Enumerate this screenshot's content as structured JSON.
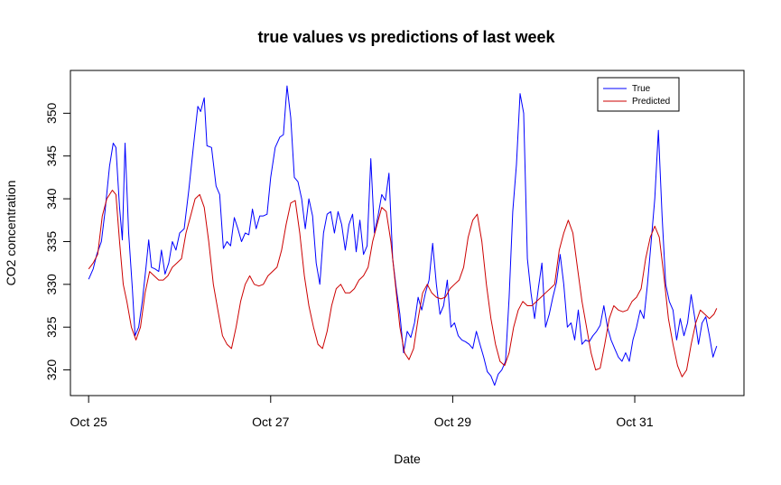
{
  "chart_data": {
    "type": "line",
    "title": "true values vs predictions of last week",
    "xlabel": "Date",
    "ylabel": "CO2 concentration",
    "x_ticks": [
      {
        "label": "Oct 25",
        "value": 0
      },
      {
        "label": "Oct 27",
        "value": 2
      },
      {
        "label": "Oct 29",
        "value": 4
      },
      {
        "label": "Oct 31",
        "value": 6
      }
    ],
    "y_ticks": [
      320,
      325,
      330,
      335,
      340,
      345,
      350
    ],
    "xlim": [
      -0.2,
      7.2
    ],
    "ylim": [
      317,
      355
    ],
    "grid": false,
    "legend_position": "top-right",
    "series": [
      {
        "name": "True",
        "color": "#0000ff",
        "points": [
          [
            0.0,
            330.6
          ],
          [
            0.05,
            331.8
          ],
          [
            0.09,
            333.5
          ],
          [
            0.14,
            335.0
          ],
          [
            0.18,
            338.5
          ],
          [
            0.23,
            343.8
          ],
          [
            0.27,
            346.5
          ],
          [
            0.3,
            346.0
          ],
          [
            0.34,
            339.0
          ],
          [
            0.37,
            335.2
          ],
          [
            0.4,
            346.5
          ],
          [
            0.44,
            336.0
          ],
          [
            0.48,
            329.5
          ],
          [
            0.51,
            324.0
          ],
          [
            0.55,
            325.0
          ],
          [
            0.59,
            328.0
          ],
          [
            0.63,
            332.0
          ],
          [
            0.66,
            335.2
          ],
          [
            0.69,
            332.0
          ],
          [
            0.73,
            331.8
          ],
          [
            0.77,
            331.5
          ],
          [
            0.8,
            334.0
          ],
          [
            0.84,
            331.2
          ],
          [
            0.88,
            332.5
          ],
          [
            0.92,
            335.0
          ],
          [
            0.96,
            334.0
          ],
          [
            1.0,
            336.0
          ],
          [
            1.05,
            336.5
          ],
          [
            1.1,
            341.0
          ],
          [
            1.15,
            346.0
          ],
          [
            1.2,
            350.8
          ],
          [
            1.23,
            350.2
          ],
          [
            1.27,
            351.8
          ],
          [
            1.3,
            346.2
          ],
          [
            1.35,
            346.0
          ],
          [
            1.4,
            341.5
          ],
          [
            1.44,
            340.5
          ],
          [
            1.48,
            334.2
          ],
          [
            1.52,
            335.0
          ],
          [
            1.56,
            334.5
          ],
          [
            1.6,
            337.8
          ],
          [
            1.64,
            336.5
          ],
          [
            1.68,
            335.0
          ],
          [
            1.72,
            336.0
          ],
          [
            1.76,
            335.8
          ],
          [
            1.8,
            338.8
          ],
          [
            1.84,
            336.5
          ],
          [
            1.88,
            338.0
          ],
          [
            1.92,
            338.0
          ],
          [
            1.96,
            338.2
          ],
          [
            2.0,
            342.5
          ],
          [
            2.05,
            346.0
          ],
          [
            2.1,
            347.2
          ],
          [
            2.14,
            347.5
          ],
          [
            2.18,
            353.2
          ],
          [
            2.22,
            349.5
          ],
          [
            2.26,
            342.5
          ],
          [
            2.3,
            342.0
          ],
          [
            2.34,
            340.0
          ],
          [
            2.38,
            336.5
          ],
          [
            2.42,
            340.0
          ],
          [
            2.46,
            338.0
          ],
          [
            2.5,
            332.5
          ],
          [
            2.54,
            330.0
          ],
          [
            2.58,
            336.0
          ],
          [
            2.62,
            338.2
          ],
          [
            2.66,
            338.5
          ],
          [
            2.7,
            336.0
          ],
          [
            2.74,
            338.5
          ],
          [
            2.78,
            337.0
          ],
          [
            2.82,
            334.0
          ],
          [
            2.86,
            337.0
          ],
          [
            2.9,
            338.2
          ],
          [
            2.94,
            333.8
          ],
          [
            2.98,
            337.5
          ],
          [
            3.02,
            333.5
          ],
          [
            3.06,
            334.5
          ],
          [
            3.1,
            344.7
          ],
          [
            3.14,
            336.0
          ],
          [
            3.18,
            338.0
          ],
          [
            3.22,
            340.5
          ],
          [
            3.26,
            339.8
          ],
          [
            3.3,
            343.0
          ],
          [
            3.34,
            333.0
          ],
          [
            3.38,
            329.5
          ],
          [
            3.42,
            326.5
          ],
          [
            3.46,
            322.0
          ],
          [
            3.5,
            324.5
          ],
          [
            3.54,
            323.8
          ],
          [
            3.58,
            325.5
          ],
          [
            3.62,
            328.5
          ],
          [
            3.66,
            327.0
          ],
          [
            3.7,
            329.0
          ],
          [
            3.74,
            330.5
          ],
          [
            3.78,
            334.8
          ],
          [
            3.82,
            330.0
          ],
          [
            3.86,
            326.5
          ],
          [
            3.9,
            327.5
          ],
          [
            3.94,
            330.5
          ],
          [
            3.98,
            325.0
          ],
          [
            4.02,
            325.5
          ],
          [
            4.06,
            324.0
          ],
          [
            4.1,
            323.5
          ],
          [
            4.14,
            323.3
          ],
          [
            4.18,
            323.0
          ],
          [
            4.22,
            322.5
          ],
          [
            4.26,
            324.5
          ],
          [
            4.3,
            323.0
          ],
          [
            4.34,
            321.5
          ],
          [
            4.38,
            319.8
          ],
          [
            4.42,
            319.3
          ],
          [
            4.46,
            318.2
          ],
          [
            4.5,
            319.5
          ],
          [
            4.54,
            320.0
          ],
          [
            4.58,
            321.0
          ],
          [
            4.62,
            328.5
          ],
          [
            4.66,
            338.5
          ],
          [
            4.7,
            344.0
          ],
          [
            4.74,
            352.3
          ],
          [
            4.78,
            350.0
          ],
          [
            4.82,
            333.0
          ],
          [
            4.86,
            329.0
          ],
          [
            4.9,
            326.0
          ],
          [
            4.94,
            329.5
          ],
          [
            4.98,
            332.5
          ],
          [
            5.02,
            325.0
          ],
          [
            5.06,
            326.5
          ],
          [
            5.1,
            328.5
          ],
          [
            5.14,
            330.2
          ],
          [
            5.18,
            333.5
          ],
          [
            5.22,
            330.0
          ],
          [
            5.26,
            325.0
          ],
          [
            5.3,
            325.5
          ],
          [
            5.34,
            323.5
          ],
          [
            5.38,
            327.0
          ],
          [
            5.42,
            323.0
          ],
          [
            5.46,
            323.5
          ],
          [
            5.5,
            323.3
          ],
          [
            5.54,
            324.0
          ],
          [
            5.58,
            324.5
          ],
          [
            5.62,
            325.2
          ],
          [
            5.66,
            327.5
          ],
          [
            5.7,
            325.0
          ],
          [
            5.74,
            323.5
          ],
          [
            5.78,
            322.5
          ],
          [
            5.82,
            321.5
          ],
          [
            5.86,
            321.0
          ],
          [
            5.9,
            322.0
          ],
          [
            5.94,
            321.0
          ],
          [
            5.98,
            323.5
          ],
          [
            6.02,
            325.0
          ],
          [
            6.06,
            327.0
          ],
          [
            6.1,
            326.0
          ],
          [
            6.14,
            330.0
          ],
          [
            6.18,
            335.0
          ],
          [
            6.22,
            340.0
          ],
          [
            6.26,
            348.0
          ],
          [
            6.3,
            338.0
          ],
          [
            6.34,
            330.0
          ],
          [
            6.38,
            328.0
          ],
          [
            6.42,
            327.0
          ],
          [
            6.46,
            323.5
          ],
          [
            6.5,
            326.0
          ],
          [
            6.54,
            324.0
          ],
          [
            6.58,
            325.5
          ],
          [
            6.62,
            328.8
          ],
          [
            6.66,
            326.0
          ],
          [
            6.7,
            323.0
          ],
          [
            6.74,
            325.5
          ],
          [
            6.78,
            326.2
          ],
          [
            6.82,
            324.0
          ],
          [
            6.86,
            321.5
          ],
          [
            6.9,
            322.8
          ]
        ]
      },
      {
        "name": "Predicted",
        "color": "#cc0000",
        "points": [
          [
            0.0,
            331.8
          ],
          [
            0.05,
            332.5
          ],
          [
            0.1,
            333.5
          ],
          [
            0.15,
            338.0
          ],
          [
            0.2,
            340.0
          ],
          [
            0.26,
            341.0
          ],
          [
            0.3,
            340.5
          ],
          [
            0.34,
            335.0
          ],
          [
            0.38,
            330.0
          ],
          [
            0.42,
            328.0
          ],
          [
            0.47,
            325.0
          ],
          [
            0.52,
            323.5
          ],
          [
            0.57,
            325.0
          ],
          [
            0.62,
            329.0
          ],
          [
            0.67,
            331.5
          ],
          [
            0.72,
            331.0
          ],
          [
            0.77,
            330.5
          ],
          [
            0.82,
            330.5
          ],
          [
            0.87,
            331.0
          ],
          [
            0.92,
            332.0
          ],
          [
            0.97,
            332.5
          ],
          [
            1.02,
            333.0
          ],
          [
            1.07,
            336.0
          ],
          [
            1.12,
            338.0
          ],
          [
            1.17,
            340.0
          ],
          [
            1.22,
            340.5
          ],
          [
            1.27,
            339.0
          ],
          [
            1.32,
            335.0
          ],
          [
            1.37,
            330.0
          ],
          [
            1.42,
            327.0
          ],
          [
            1.47,
            324.0
          ],
          [
            1.52,
            323.0
          ],
          [
            1.57,
            322.5
          ],
          [
            1.62,
            325.0
          ],
          [
            1.67,
            328.0
          ],
          [
            1.72,
            330.0
          ],
          [
            1.77,
            331.0
          ],
          [
            1.82,
            330.0
          ],
          [
            1.87,
            329.8
          ],
          [
            1.92,
            330.0
          ],
          [
            1.97,
            331.0
          ],
          [
            2.02,
            331.5
          ],
          [
            2.07,
            332.0
          ],
          [
            2.12,
            334.0
          ],
          [
            2.17,
            337.0
          ],
          [
            2.22,
            339.5
          ],
          [
            2.27,
            339.8
          ],
          [
            2.32,
            336.0
          ],
          [
            2.37,
            331.0
          ],
          [
            2.42,
            327.5
          ],
          [
            2.47,
            325.0
          ],
          [
            2.52,
            323.0
          ],
          [
            2.57,
            322.5
          ],
          [
            2.62,
            324.5
          ],
          [
            2.67,
            327.5
          ],
          [
            2.72,
            329.5
          ],
          [
            2.77,
            330.0
          ],
          [
            2.82,
            329.0
          ],
          [
            2.87,
            329.0
          ],
          [
            2.92,
            329.5
          ],
          [
            2.97,
            330.5
          ],
          [
            3.02,
            331.0
          ],
          [
            3.07,
            332.0
          ],
          [
            3.12,
            335.0
          ],
          [
            3.17,
            337.0
          ],
          [
            3.22,
            339.0
          ],
          [
            3.27,
            338.5
          ],
          [
            3.32,
            335.0
          ],
          [
            3.37,
            330.0
          ],
          [
            3.42,
            325.0
          ],
          [
            3.47,
            322.0
          ],
          [
            3.52,
            321.2
          ],
          [
            3.57,
            322.5
          ],
          [
            3.62,
            326.0
          ],
          [
            3.67,
            329.0
          ],
          [
            3.72,
            330.0
          ],
          [
            3.77,
            329.0
          ],
          [
            3.82,
            328.5
          ],
          [
            3.87,
            328.3
          ],
          [
            3.92,
            328.5
          ],
          [
            3.97,
            329.5
          ],
          [
            4.02,
            330.0
          ],
          [
            4.07,
            330.5
          ],
          [
            4.12,
            332.0
          ],
          [
            4.17,
            335.5
          ],
          [
            4.22,
            337.5
          ],
          [
            4.27,
            338.2
          ],
          [
            4.32,
            335.0
          ],
          [
            4.37,
            330.0
          ],
          [
            4.42,
            326.0
          ],
          [
            4.47,
            323.0
          ],
          [
            4.52,
            321.0
          ],
          [
            4.57,
            320.5
          ],
          [
            4.62,
            322.0
          ],
          [
            4.67,
            325.0
          ],
          [
            4.72,
            327.0
          ],
          [
            4.77,
            328.0
          ],
          [
            4.82,
            327.5
          ],
          [
            4.87,
            327.5
          ],
          [
            4.92,
            328.0
          ],
          [
            4.97,
            328.5
          ],
          [
            5.02,
            329.0
          ],
          [
            5.07,
            329.5
          ],
          [
            5.12,
            330.0
          ],
          [
            5.17,
            334.0
          ],
          [
            5.22,
            336.0
          ],
          [
            5.27,
            337.5
          ],
          [
            5.32,
            336.0
          ],
          [
            5.37,
            332.0
          ],
          [
            5.42,
            328.0
          ],
          [
            5.47,
            325.0
          ],
          [
            5.52,
            322.0
          ],
          [
            5.57,
            320.0
          ],
          [
            5.62,
            320.2
          ],
          [
            5.67,
            323.0
          ],
          [
            5.72,
            326.0
          ],
          [
            5.77,
            327.5
          ],
          [
            5.82,
            327.0
          ],
          [
            5.87,
            326.8
          ],
          [
            5.92,
            327.0
          ],
          [
            5.97,
            328.0
          ],
          [
            6.02,
            328.5
          ],
          [
            6.07,
            329.5
          ],
          [
            6.12,
            333.0
          ],
          [
            6.17,
            335.5
          ],
          [
            6.22,
            336.8
          ],
          [
            6.27,
            335.5
          ],
          [
            6.32,
            331.0
          ],
          [
            6.37,
            326.0
          ],
          [
            6.42,
            323.0
          ],
          [
            6.47,
            320.5
          ],
          [
            6.52,
            319.2
          ],
          [
            6.57,
            320.0
          ],
          [
            6.62,
            323.0
          ],
          [
            6.67,
            325.5
          ],
          [
            6.72,
            327.0
          ],
          [
            6.77,
            326.5
          ],
          [
            6.82,
            326.0
          ],
          [
            6.87,
            326.5
          ],
          [
            6.9,
            327.2
          ]
        ]
      }
    ]
  }
}
